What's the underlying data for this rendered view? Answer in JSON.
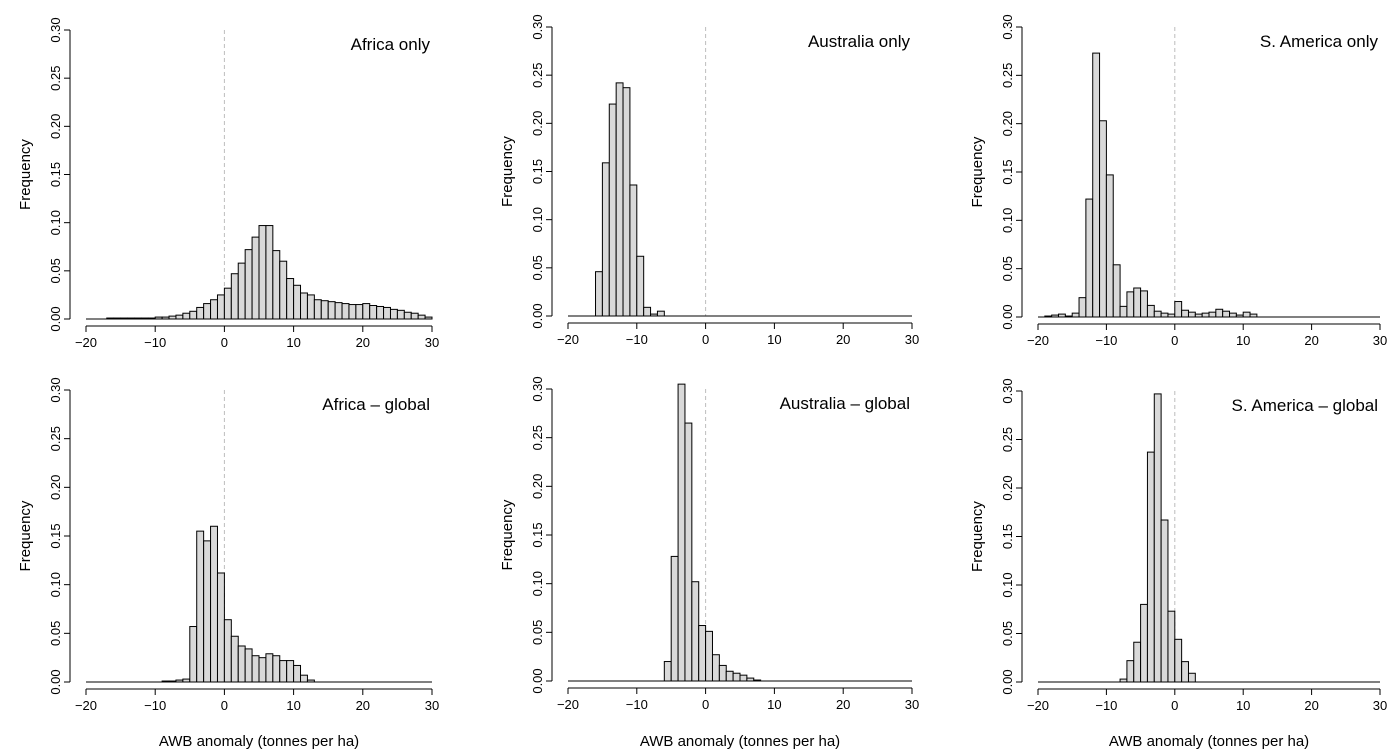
{
  "chart_data": [
    {
      "type": "bar",
      "title": "Africa only",
      "xlabel": "",
      "ylabel": "Frequency",
      "xlim": [
        -20,
        30
      ],
      "ylim": [
        0,
        0.3
      ],
      "bin_width": 1,
      "xticks": [
        "−20",
        "−10",
        "0",
        "10",
        "20",
        "30"
      ],
      "yticks": [
        "0.00",
        "0.05",
        "0.10",
        "0.15",
        "0.20",
        "0.25",
        "0.30"
      ],
      "bins_start": [
        -20,
        -19,
        -18,
        -17,
        -16,
        -15,
        -14,
        -13,
        -12,
        -11,
        -10,
        -9,
        -8,
        -7,
        -6,
        -5,
        -4,
        -3,
        -2,
        -1,
        0,
        1,
        2,
        3,
        4,
        5,
        6,
        7,
        8,
        9,
        10,
        11,
        12,
        13,
        14,
        15,
        16,
        17,
        18,
        19,
        20,
        21,
        22,
        23,
        24,
        25,
        26,
        27,
        28,
        29
      ],
      "values": [
        0.0,
        0.0,
        0.0,
        0.001,
        0.001,
        0.001,
        0.001,
        0.001,
        0.001,
        0.001,
        0.002,
        0.002,
        0.003,
        0.004,
        0.006,
        0.008,
        0.012,
        0.016,
        0.02,
        0.025,
        0.032,
        0.047,
        0.058,
        0.072,
        0.085,
        0.097,
        0.097,
        0.071,
        0.06,
        0.042,
        0.035,
        0.027,
        0.025,
        0.02,
        0.019,
        0.018,
        0.017,
        0.016,
        0.015,
        0.015,
        0.016,
        0.014,
        0.013,
        0.012,
        0.01,
        0.009,
        0.007,
        0.006,
        0.004,
        0.002
      ]
    },
    {
      "type": "bar",
      "title": "Australia only",
      "xlabel": "",
      "ylabel": "Frequency",
      "xlim": [
        -20,
        30
      ],
      "ylim": [
        0,
        0.3
      ],
      "bin_width": 1,
      "xticks": [
        "−20",
        "−10",
        "0",
        "10",
        "20",
        "30"
      ],
      "yticks": [
        "0.00",
        "0.05",
        "0.10",
        "0.15",
        "0.20",
        "0.25",
        "0.30"
      ],
      "bins_start": [
        -16,
        -15,
        -14,
        -13,
        -12,
        -11,
        -10,
        -9,
        -8,
        -7,
        -6
      ],
      "values": [
        0.046,
        0.159,
        0.22,
        0.242,
        0.237,
        0.136,
        0.062,
        0.009,
        0.002,
        0.005,
        0.0
      ]
    },
    {
      "type": "bar",
      "title": "S. America only",
      "xlabel": "",
      "ylabel": "Frequency",
      "xlim": [
        -20,
        30
      ],
      "ylim": [
        0,
        0.3
      ],
      "bin_width": 1,
      "xticks": [
        "−20",
        "−10",
        "0",
        "10",
        "20",
        "30"
      ],
      "yticks": [
        "0.00",
        "0.05",
        "0.10",
        "0.15",
        "0.20",
        "0.25",
        "0.30"
      ],
      "bins_start": [
        -19,
        -18,
        -17,
        -16,
        -15,
        -14,
        -13,
        -12,
        -11,
        -10,
        -9,
        -8,
        -7,
        -6,
        -5,
        -4,
        -3,
        -2,
        -1,
        0,
        1,
        2,
        3,
        4,
        5,
        6,
        7,
        8,
        9,
        10,
        11
      ],
      "values": [
        0.001,
        0.002,
        0.003,
        0.001,
        0.004,
        0.02,
        0.122,
        0.273,
        0.203,
        0.147,
        0.054,
        0.011,
        0.026,
        0.03,
        0.027,
        0.012,
        0.006,
        0.004,
        0.003,
        0.016,
        0.007,
        0.005,
        0.003,
        0.004,
        0.005,
        0.008,
        0.006,
        0.004,
        0.002,
        0.005,
        0.003
      ]
    },
    {
      "type": "bar",
      "title": "Africa – global",
      "xlabel": "AWB anomaly (tonnes per ha)",
      "ylabel": "Frequency",
      "xlim": [
        -20,
        30
      ],
      "ylim": [
        0,
        0.3
      ],
      "bin_width": 1,
      "xticks": [
        "−20",
        "−10",
        "0",
        "10",
        "20",
        "30"
      ],
      "yticks": [
        "0.00",
        "0.05",
        "0.10",
        "0.15",
        "0.20",
        "0.25",
        "0.30"
      ],
      "bins_start": [
        -9,
        -8,
        -7,
        -6,
        -5,
        -4,
        -3,
        -2,
        -1,
        0,
        1,
        2,
        3,
        4,
        5,
        6,
        7,
        8,
        9,
        10,
        11,
        12
      ],
      "values": [
        0.001,
        0.001,
        0.002,
        0.003,
        0.057,
        0.155,
        0.145,
        0.16,
        0.112,
        0.064,
        0.047,
        0.037,
        0.034,
        0.027,
        0.025,
        0.029,
        0.027,
        0.022,
        0.022,
        0.017,
        0.007,
        0.002
      ]
    },
    {
      "type": "bar",
      "title": "Australia – global",
      "xlabel": "AWB anomaly (tonnes per ha)",
      "ylabel": "Frequency",
      "xlim": [
        -20,
        30
      ],
      "ylim": [
        0,
        0.3
      ],
      "bin_width": 1,
      "xticks": [
        "−20",
        "−10",
        "0",
        "10",
        "20",
        "30"
      ],
      "yticks": [
        "0.00",
        "0.05",
        "0.10",
        "0.15",
        "0.20",
        "0.25",
        "0.30"
      ],
      "bins_start": [
        -6,
        -5,
        -4,
        -3,
        -2,
        -1,
        0,
        1,
        2,
        3,
        4,
        5,
        6,
        7
      ],
      "values": [
        0.02,
        0.128,
        0.305,
        0.265,
        0.102,
        0.057,
        0.051,
        0.027,
        0.016,
        0.01,
        0.008,
        0.006,
        0.003,
        0.001
      ]
    },
    {
      "type": "bar",
      "title": "S. America – global",
      "xlabel": "AWB anomaly (tonnes per ha)",
      "ylabel": "Frequency",
      "xlim": [
        -20,
        30
      ],
      "ylim": [
        0,
        0.3
      ],
      "bin_width": 1,
      "xticks": [
        "−20",
        "−10",
        "0",
        "10",
        "20",
        "30"
      ],
      "yticks": [
        "0.00",
        "0.05",
        "0.10",
        "0.15",
        "0.20",
        "0.25",
        "0.30"
      ],
      "bins_start": [
        -8,
        -7,
        -6,
        -5,
        -4,
        -3,
        -2,
        -1,
        0,
        1,
        2
      ],
      "values": [
        0.003,
        0.022,
        0.041,
        0.08,
        0.237,
        0.297,
        0.167,
        0.073,
        0.044,
        0.021,
        0.009
      ]
    }
  ]
}
